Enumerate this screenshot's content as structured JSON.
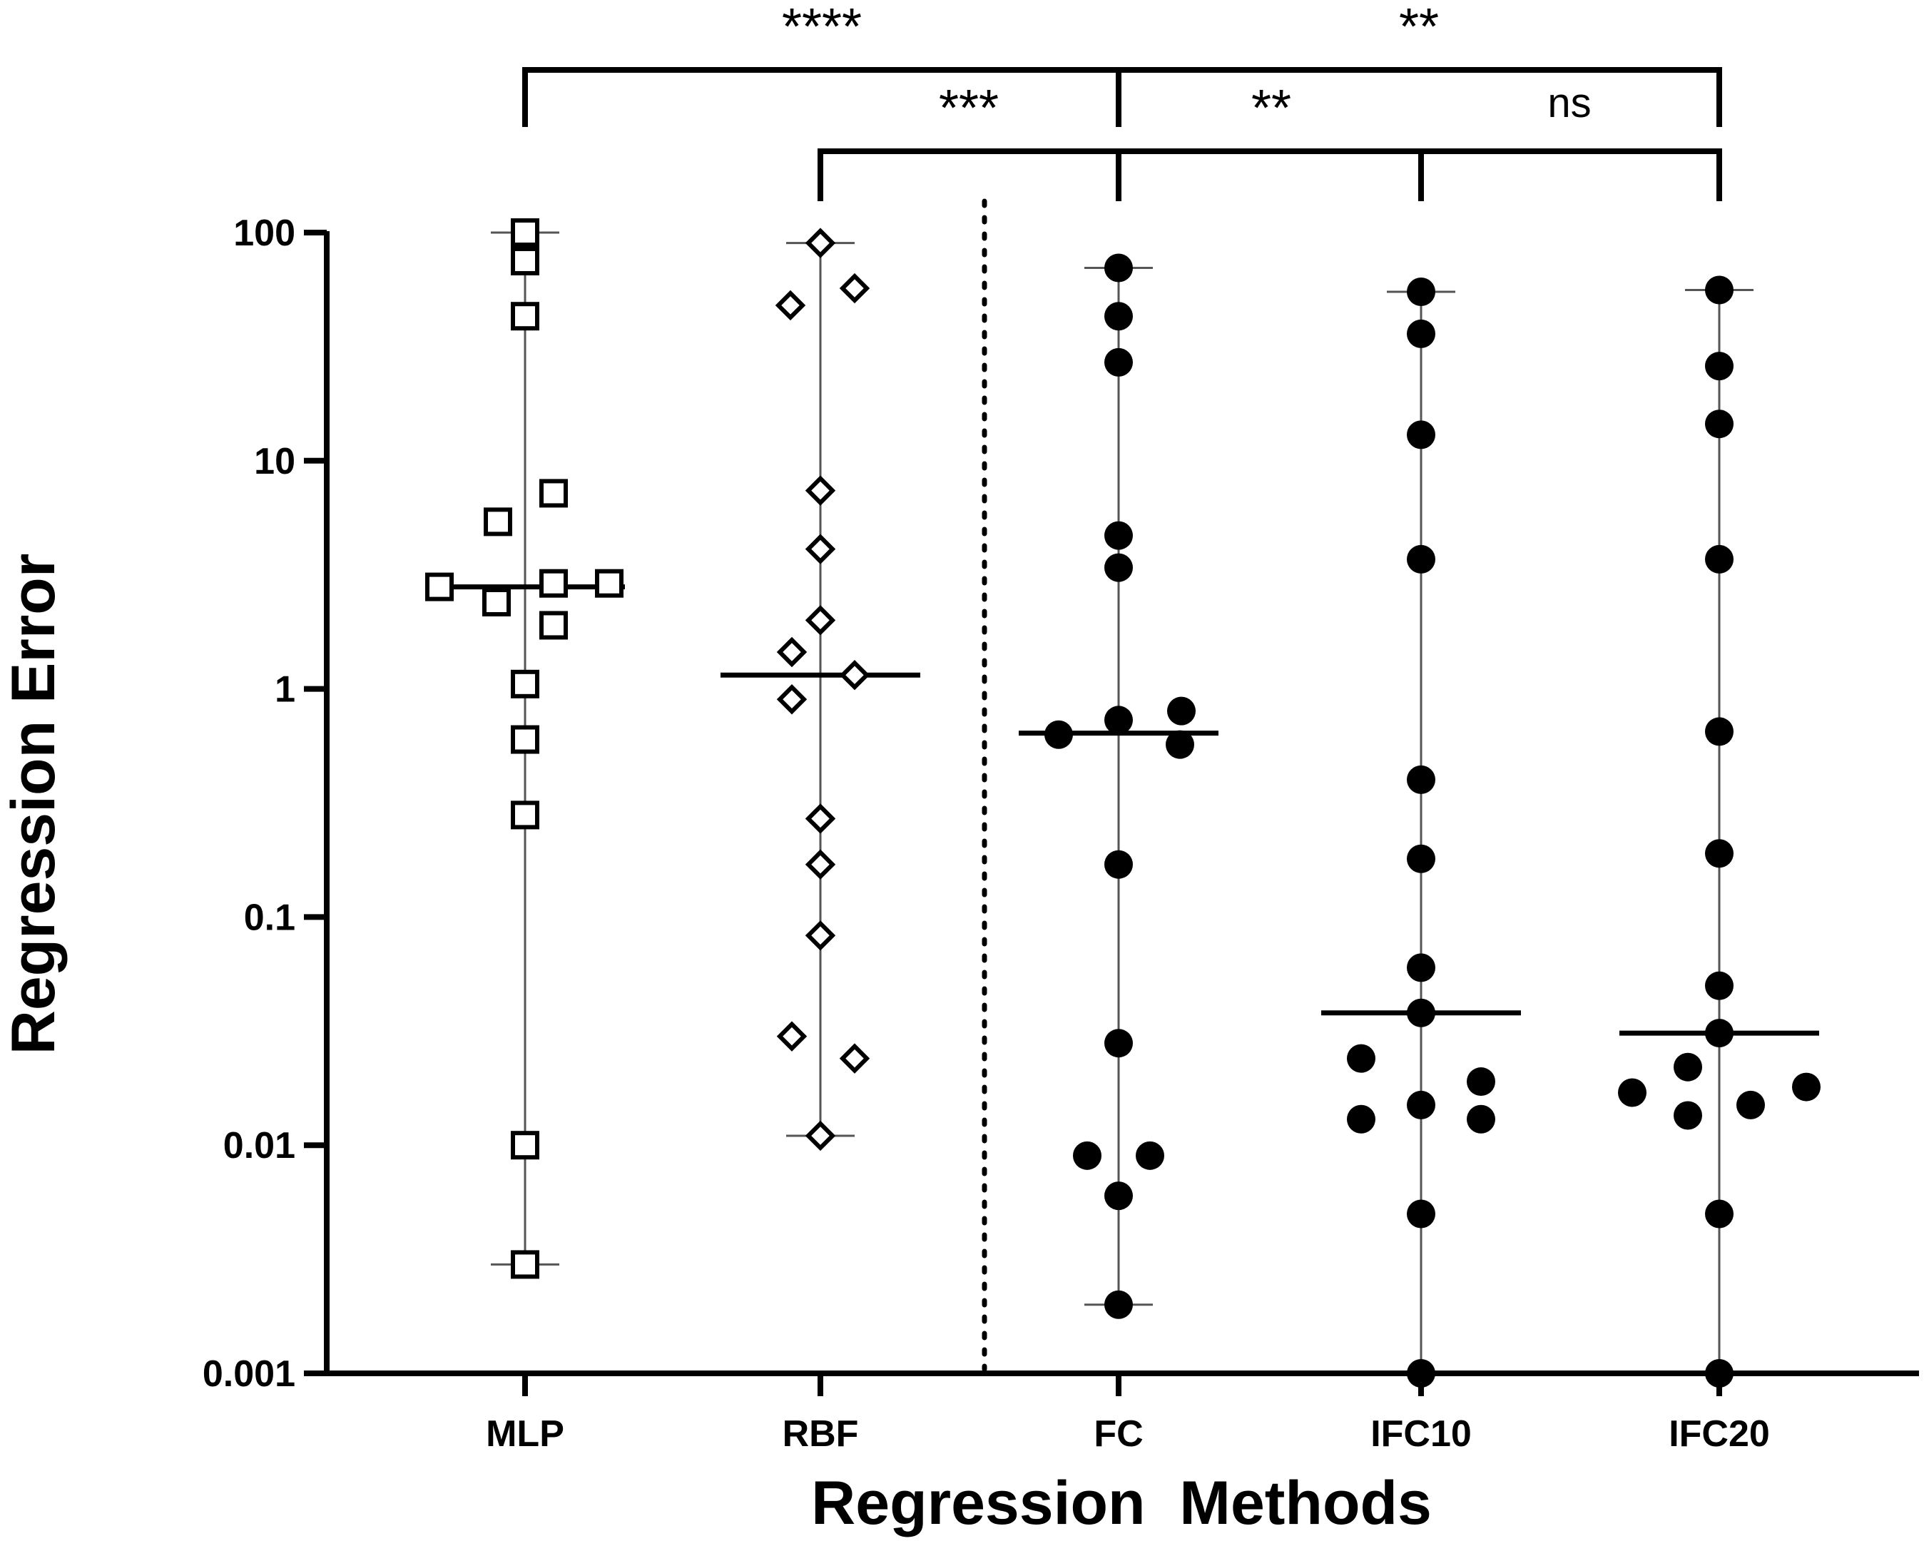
{
  "chart_data": {
    "type": "scatter",
    "subtype": "dot-plot-with-median-and-range",
    "title": "",
    "xlabel": "Regression  Methods",
    "ylabel": "Regression Error",
    "yscale": "log",
    "ylim": [
      0.001,
      100
    ],
    "yticks": [
      "100",
      "10",
      "1",
      "0.1",
      "0.01",
      "0.001"
    ],
    "categories": [
      "MLP",
      "RBF",
      "FC",
      "IFC10",
      "IFC20"
    ],
    "separator_after": "RBF",
    "series": [
      {
        "name": "MLP",
        "marker": "open-square",
        "median": 2.8,
        "min": 0.003,
        "max": 100,
        "values": [
          100,
          75,
          43,
          7.2,
          5.4,
          2.8,
          2.9,
          2.9,
          2.4,
          1.9,
          1.05,
          0.6,
          0.28,
          0.01,
          0.003
        ]
      },
      {
        "name": "RBF",
        "marker": "open-diamond",
        "median": 1.15,
        "min": 0.011,
        "max": 90,
        "values": [
          90,
          57,
          48,
          7.4,
          4.1,
          2.0,
          1.45,
          1.15,
          0.9,
          0.27,
          0.17,
          0.083,
          0.03,
          0.024,
          0.011
        ]
      },
      {
        "name": "FC",
        "marker": "filled-circle",
        "median": 0.64,
        "min": 0.002,
        "max": 70,
        "values": [
          70,
          43,
          27,
          4.7,
          3.4,
          0.8,
          0.73,
          0.63,
          0.57,
          0.17,
          0.028,
          0.009,
          0.009,
          0.006,
          0.002
        ]
      },
      {
        "name": "IFC10",
        "marker": "filled-circle",
        "median": 0.038,
        "min": 0.001,
        "max": 55,
        "values": [
          55,
          36,
          13,
          3.7,
          0.4,
          0.18,
          0.06,
          0.038,
          0.024,
          0.019,
          0.015,
          0.013,
          0.013,
          0.005,
          0.001
        ]
      },
      {
        "name": "IFC20",
        "marker": "filled-circle",
        "median": 0.031,
        "min": 0.001,
        "max": 56,
        "values": [
          56,
          26,
          14.5,
          3.7,
          0.65,
          0.19,
          0.05,
          0.031,
          0.022,
          0.018,
          0.017,
          0.015,
          0.0135,
          0.005,
          0.001
        ]
      }
    ],
    "comparisons": [
      {
        "from": "MLP",
        "to": "FC",
        "label": "****"
      },
      {
        "from": "FC",
        "to": "IFC20",
        "label": "**"
      },
      {
        "from": "RBF",
        "to": "FC",
        "label": "***"
      },
      {
        "from": "FC",
        "to": "IFC10",
        "label": "**"
      },
      {
        "from": "IFC10",
        "to": "IFC20",
        "label": "ns"
      }
    ]
  }
}
